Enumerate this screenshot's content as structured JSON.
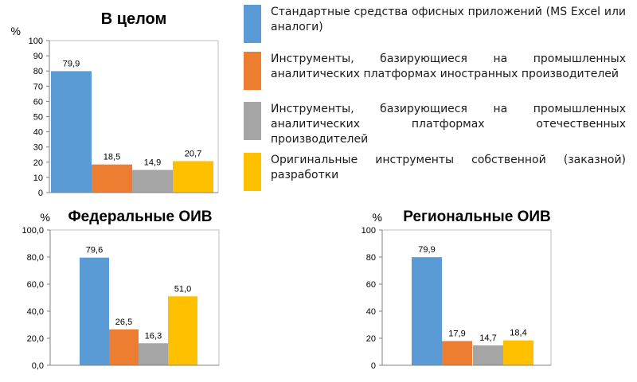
{
  "colors": {
    "office": "#5b9bd5",
    "foreign": "#ed7d31",
    "domestic": "#a5a5a5",
    "custom": "#ffc000"
  },
  "legend": {
    "items": [
      {
        "key": "office",
        "label": "Стандартные средства офисных приложений (MS Excel или аналоги)"
      },
      {
        "key": "foreign",
        "label": "Инструменты, базирующиеся на промышленных аналитических платформах иностранных производителей"
      },
      {
        "key": "domestic",
        "label": "Инструменты, базирующиеся на промышленных аналитических платформах отечественных производителей"
      },
      {
        "key": "custom",
        "label": "Оригинальные инструменты собственной (заказной) разработки"
      }
    ]
  },
  "chart_data": [
    {
      "type": "bar",
      "title": "В целом",
      "ylabel": "%",
      "ylim": [
        0,
        100
      ],
      "yticks": [
        "0",
        "10",
        "20",
        "30",
        "40",
        "50",
        "60",
        "70",
        "80",
        "90",
        "100"
      ],
      "grid": false,
      "categories": [
        "Стандартные средства офисных приложений (MS Excel или аналоги)",
        "Инструменты, базирующиеся на промышленных аналитических платформах иностранных производителей",
        "Инструменты, базирующиеся на промышленных аналитических платформах отечественных производителей",
        "Оригинальные инструменты собственной (заказной) разработки"
      ],
      "values": [
        79.9,
        18.5,
        14.9,
        20.7
      ],
      "value_labels": [
        "79,9",
        "18,5",
        "14,9",
        "20,7"
      ]
    },
    {
      "type": "bar",
      "title": "Федеральные ОИВ",
      "ylabel": "%",
      "ylim": [
        0,
        100
      ],
      "yticks": [
        "0,0",
        "20,0",
        "40,0",
        "60,0",
        "80,0",
        "100,0"
      ],
      "grid": false,
      "categories": [
        "Стандартные средства офисных приложений (MS Excel или аналоги)",
        "Инструменты, базирующиеся на промышленных аналитических платформах иностранных производителей",
        "Инструменты, базирующиеся на промышленных аналитических платформах отечественных производителей",
        "Оригинальные инструменты собственной (заказной) разработки"
      ],
      "values": [
        79.6,
        26.5,
        16.3,
        51.0
      ],
      "value_labels": [
        "79,6",
        "26,5",
        "16,3",
        "51,0"
      ]
    },
    {
      "type": "bar",
      "title": "Региональные ОИВ",
      "ylabel": "%",
      "ylim": [
        0,
        100
      ],
      "yticks": [
        "0",
        "20",
        "40",
        "60",
        "80",
        "100"
      ],
      "grid": false,
      "categories": [
        "Стандартные средства офисных приложений (MS Excel или аналоги)",
        "Инструменты, базирующиеся на промышленных аналитических платформах иностранных производителей",
        "Инструменты, базирующиеся на промышленных аналитических платформах отечественных производителей",
        "Оригинальные инструменты собственной (заказной) разработки"
      ],
      "values": [
        79.9,
        17.9,
        14.7,
        18.4
      ],
      "value_labels": [
        "79,9",
        "17,9",
        "14,7",
        "18,4"
      ]
    }
  ]
}
